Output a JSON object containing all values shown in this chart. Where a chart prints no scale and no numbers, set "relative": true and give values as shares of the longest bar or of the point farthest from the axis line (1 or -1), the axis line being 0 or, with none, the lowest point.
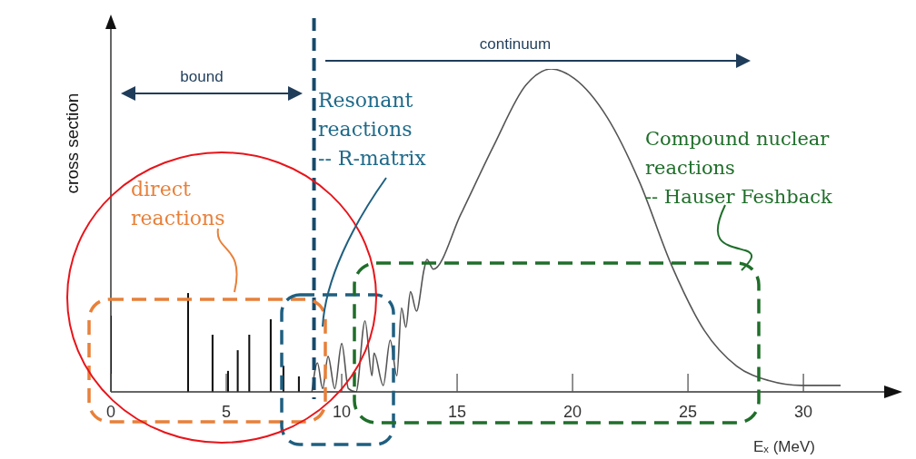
{
  "chart_data": {
    "type": "bar",
    "xlabel": "Eₓ (MeV)",
    "ylabel": "cross section",
    "relative": true,
    "xlim": [
      0,
      33.5
    ],
    "xticks": [
      0,
      5,
      10,
      15,
      20,
      25,
      30
    ],
    "series": [
      {
        "color": "#111111",
        "x": [
          0,
          3.35,
          4.41,
          5.08,
          5.5,
          6.0,
          6.93,
          7.48,
          8.15
        ],
        "values": [
          0.236,
          0.306,
          0.177,
          0.065,
          0.129,
          0.177,
          0.225,
          0.081,
          0.048
        ]
      },
      {
        "type": "line",
        "color": "#555555",
        "x": [
          8.71,
          8.95,
          9.17,
          9.41,
          9.7,
          10.0,
          10.29,
          10.62,
          11.01,
          11.31,
          11.4,
          11.8,
          12.1,
          12.39,
          12.59,
          12.78,
          12.98,
          13.24,
          13.57,
          13.69,
          13.97,
          15.16,
          16.57,
          17.98,
          19.09,
          20.08,
          21.5,
          22.9,
          24.3,
          25.71,
          27.11,
          28.5,
          29.92,
          31.61
        ],
        "values": [
          0.0,
          0.09,
          0.01,
          0.11,
          0.01,
          0.15,
          0.01,
          0.0,
          0.22,
          0.05,
          0.12,
          0.02,
          0.16,
          0.05,
          0.26,
          0.2,
          0.31,
          0.25,
          0.38,
          0.41,
          0.38,
          0.55,
          0.76,
          0.95,
          1.0,
          0.97,
          0.85,
          0.65,
          0.39,
          0.19,
          0.08,
          0.035,
          0.02,
          0.02
        ]
      }
    ],
    "ref_lines": [
      {
        "axis": "x",
        "value": 8.8,
        "color": "#17496b",
        "line_style": "dashed"
      }
    ],
    "annotations": [
      "bound",
      "continuum",
      "direct\nreactions",
      "Resonant\nreactions\n-- R-matrix",
      "Compound nuclear\nreactions\n-- Hauser Feshback"
    ]
  }
}
